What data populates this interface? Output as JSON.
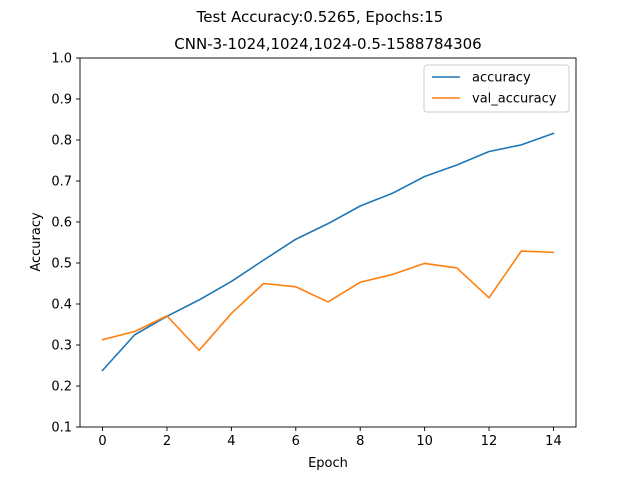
{
  "chart_data": {
    "type": "line",
    "suptitle": "Test Accuracy:0.5265, Epochs:15",
    "title": "CNN-3-1024,1024,1024-0.5-1588784306",
    "xlabel": "Epoch",
    "ylabel": "Accuracy",
    "xlim": [
      -0.7,
      14.7
    ],
    "ylim": [
      0.1,
      1.0
    ],
    "xticks": [
      0,
      2,
      4,
      6,
      8,
      10,
      12,
      14
    ],
    "yticks": [
      0.1,
      0.2,
      0.3,
      0.4,
      0.5,
      0.6,
      0.7,
      0.8,
      0.9,
      1.0
    ],
    "grid": false,
    "legend_position": "top-right",
    "x": [
      0,
      1,
      2,
      3,
      4,
      5,
      6,
      7,
      8,
      9,
      10,
      11,
      12,
      13,
      14
    ],
    "series": [
      {
        "name": "accuracy",
        "color": "#1f77b4",
        "values": [
          0.238,
          0.325,
          0.37,
          0.41,
          0.455,
          0.507,
          0.558,
          0.596,
          0.639,
          0.67,
          0.711,
          0.739,
          0.772,
          0.788,
          0.816
        ]
      },
      {
        "name": "val_accuracy",
        "color": "#ff7f0e",
        "values": [
          0.313,
          0.333,
          0.371,
          0.287,
          0.377,
          0.45,
          0.442,
          0.405,
          0.453,
          0.472,
          0.499,
          0.488,
          0.415,
          0.529,
          0.526
        ]
      }
    ]
  }
}
